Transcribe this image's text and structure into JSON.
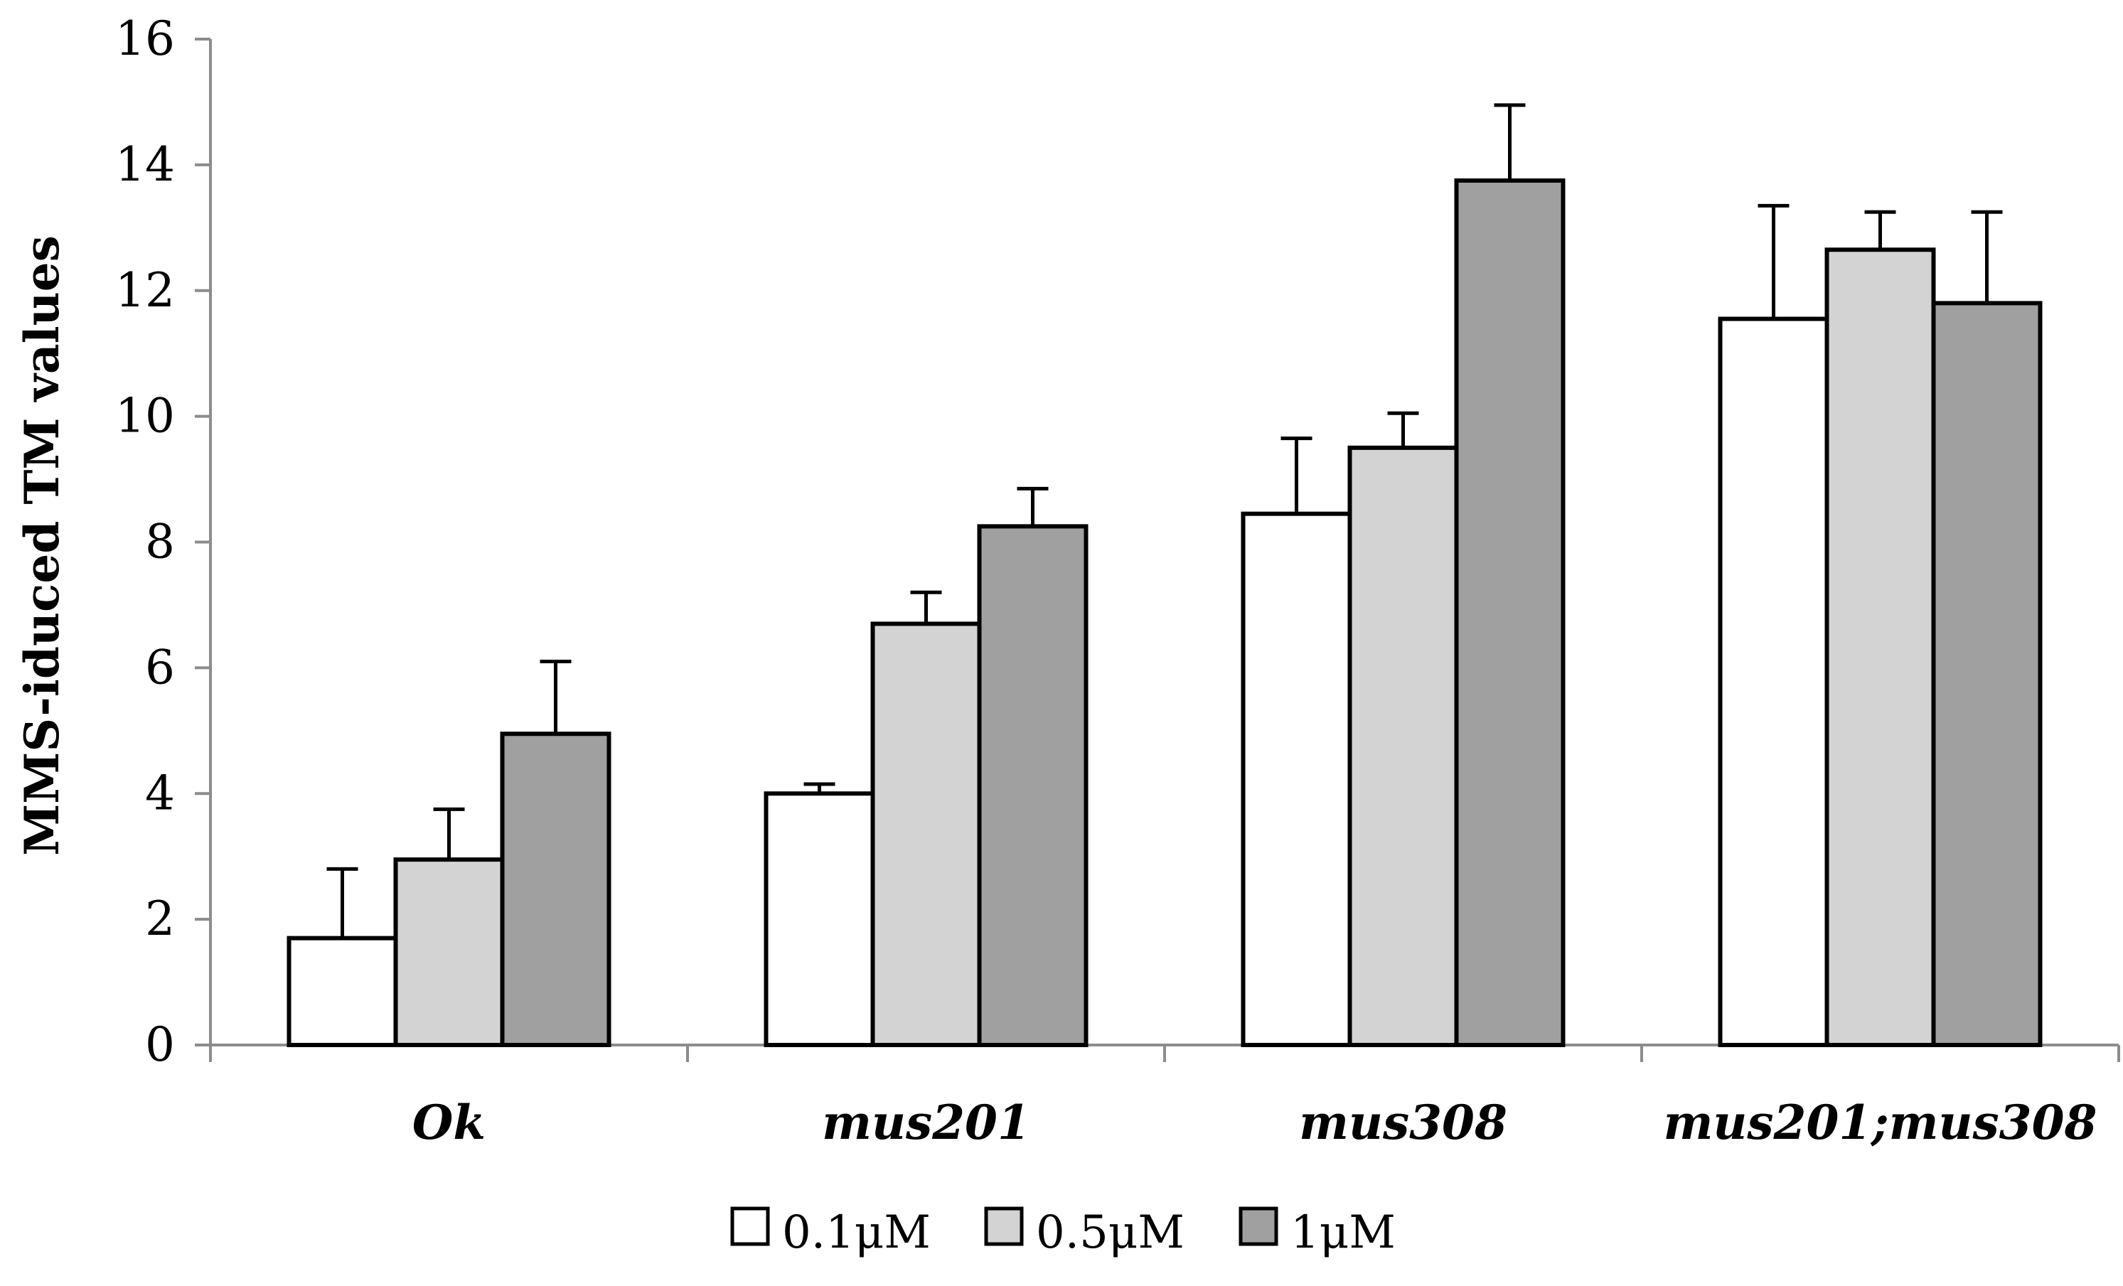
{
  "chart_data": {
    "type": "bar",
    "title": "",
    "xlabel": "",
    "ylabel": "MMS-iduced TM values",
    "ylim": [
      0,
      16
    ],
    "yticks": [
      0,
      2,
      4,
      6,
      8,
      10,
      12,
      14,
      16
    ],
    "categories": [
      "Ok",
      "mus201",
      "mus308",
      "mus201;mus308"
    ],
    "series": [
      {
        "name": "0.1μM",
        "color": "#ffffff",
        "values": [
          1.7,
          4.0,
          8.45,
          11.55
        ],
        "errors": [
          1.1,
          0.15,
          1.2,
          1.8
        ]
      },
      {
        "name": "0.5μM",
        "color": "#d3d3d3",
        "values": [
          2.95,
          6.7,
          9.5,
          12.65
        ],
        "errors": [
          0.8,
          0.5,
          0.55,
          0.6
        ]
      },
      {
        "name": "1μM",
        "color": "#a0a0a0",
        "values": [
          4.95,
          8.25,
          13.75,
          11.8
        ],
        "errors": [
          1.15,
          0.6,
          1.2,
          1.45
        ]
      }
    ],
    "legend_position": "bottom",
    "grid": false
  }
}
